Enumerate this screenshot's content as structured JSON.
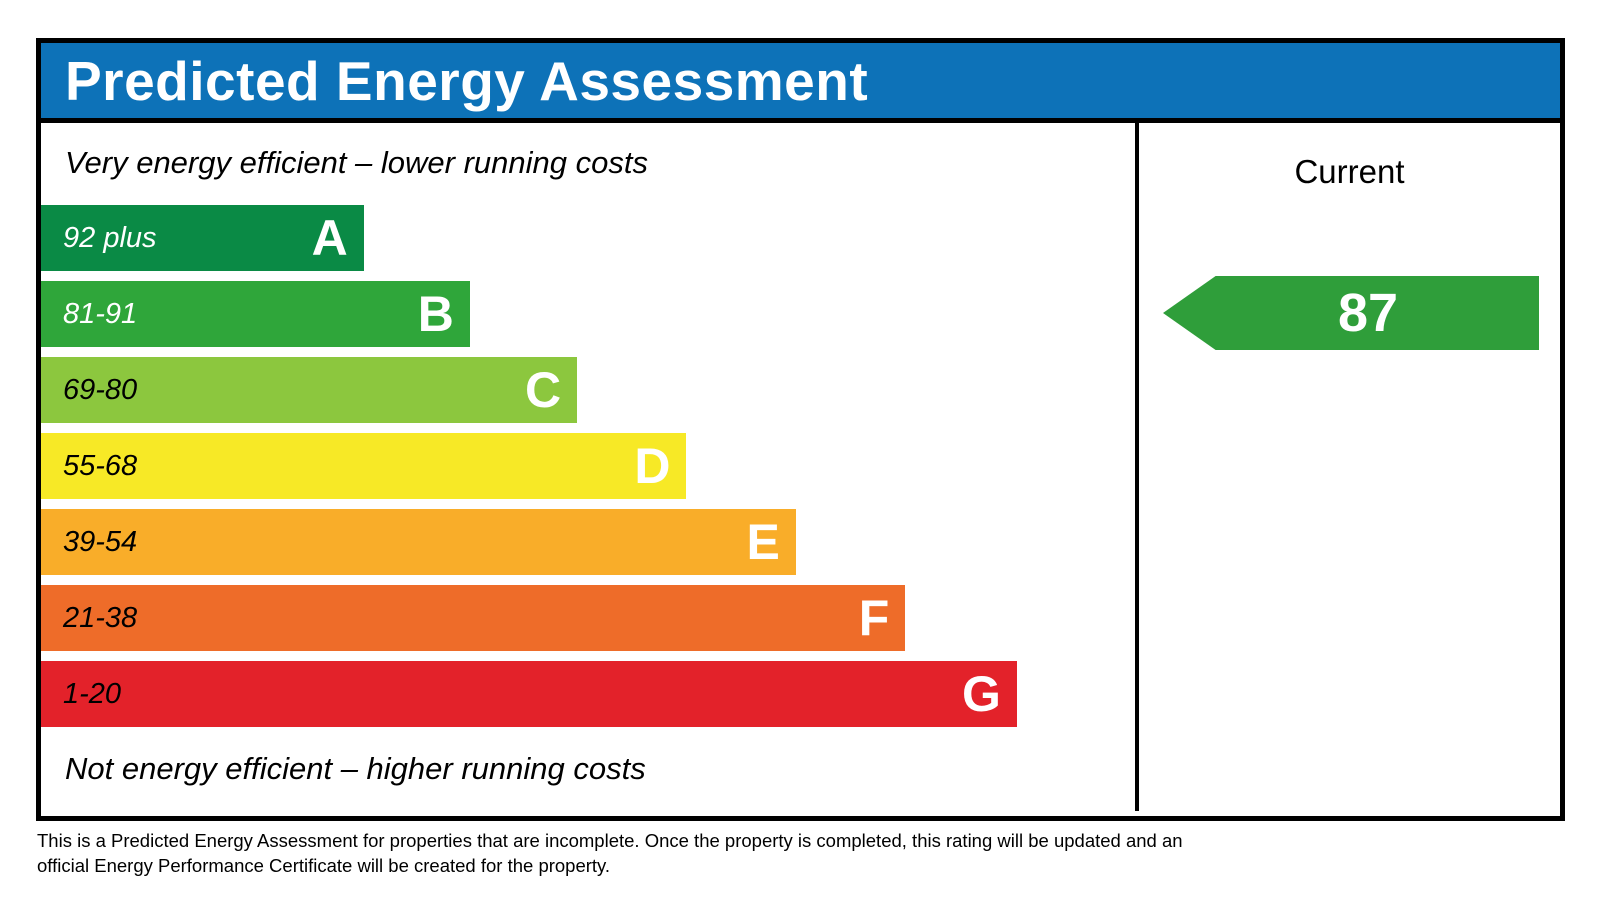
{
  "title": "Predicted Energy Assessment",
  "colors": {
    "header_bg": "#0d72b8",
    "border": "#000000",
    "arrow": "#2f9e3a"
  },
  "labels": {
    "top_caption": "Very energy efficient – lower running costs",
    "bottom_caption": "Not energy efficient – higher running costs",
    "current_header": "Current"
  },
  "chart_data": {
    "type": "bar",
    "title": "Predicted Energy Assessment",
    "columns": [
      "Current"
    ],
    "bands": [
      {
        "letter": "A",
        "range": "92 plus",
        "min": 92,
        "max": 100,
        "color": "#0a8a45",
        "width_pct": 29.5,
        "text_color": "#ffffff"
      },
      {
        "letter": "B",
        "range": "81-91",
        "min": 81,
        "max": 91,
        "color": "#2fa63a",
        "width_pct": 39.2,
        "text_color": "#ffffff"
      },
      {
        "letter": "C",
        "range": "69-80",
        "min": 69,
        "max": 80,
        "color": "#8cc73e",
        "width_pct": 49.0,
        "text_color": "#000000"
      },
      {
        "letter": "D",
        "range": "55-68",
        "min": 55,
        "max": 68,
        "color": "#f7e926",
        "width_pct": 59.0,
        "text_color": "#000000"
      },
      {
        "letter": "E",
        "range": "39-54",
        "min": 39,
        "max": 54,
        "color": "#f9ad29",
        "width_pct": 69.0,
        "text_color": "#000000"
      },
      {
        "letter": "F",
        "range": "21-38",
        "min": 21,
        "max": 38,
        "color": "#ee6c29",
        "width_pct": 79.0,
        "text_color": "#000000"
      },
      {
        "letter": "G",
        "range": "1-20",
        "min": 1,
        "max": 20,
        "color": "#e3222a",
        "width_pct": 89.2,
        "text_color": "#000000"
      }
    ],
    "current": {
      "value": 87,
      "band": "B",
      "arrow_color": "#2f9e3a"
    }
  },
  "footer": {
    "line1": "This is a Predicted Energy Assessment for properties that are incomplete. Once the property is completed, this rating will be updated and an",
    "line2": "official Energy Performance Certificate will be created for the property."
  }
}
